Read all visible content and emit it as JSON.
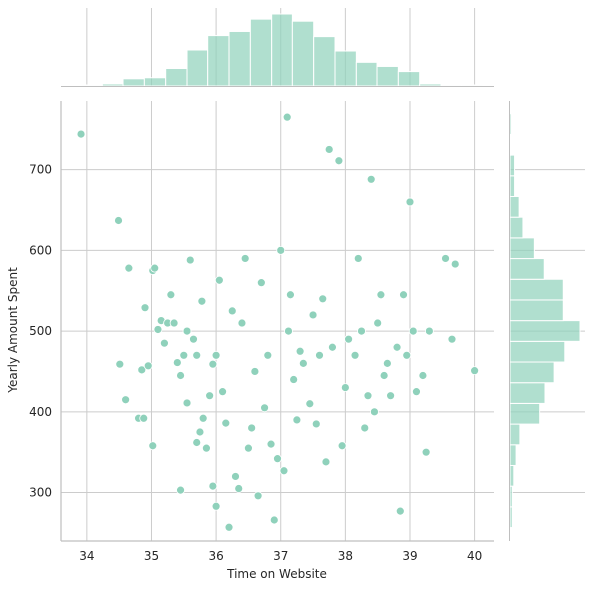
{
  "chart_data": {
    "type": "scatter",
    "title": "",
    "xlabel": "Time on Website",
    "ylabel": "Yearly Amount Spent",
    "xlim": [
      33.6,
      40.3
    ],
    "ylim": [
      240,
      785
    ],
    "xticks": [
      34,
      35,
      36,
      37,
      38,
      39,
      40
    ],
    "yticks": [
      300,
      400,
      500,
      600,
      700
    ],
    "grid": true,
    "color": "#8fd1bb",
    "marginal_x_hist": {
      "bin_edges": [
        33.91,
        34.24,
        34.56,
        34.89,
        35.22,
        35.55,
        35.87,
        36.2,
        36.53,
        36.86,
        37.18,
        37.51,
        37.84,
        38.17,
        38.49,
        38.82,
        39.15,
        39.48,
        39.8,
        40.13
      ],
      "counts": [
        1,
        2,
        7,
        8,
        17,
        35,
        49,
        53,
        65,
        70,
        63,
        48,
        34,
        23,
        19,
        14,
        2,
        1,
        1
      ]
    },
    "marginal_y_hist": {
      "bin_edges": [
        256.67,
        282.3,
        307.93,
        333.55,
        359.18,
        384.81,
        410.44,
        436.07,
        461.69,
        487.32,
        512.95,
        538.58,
        564.21,
        589.83,
        615.46,
        641.09,
        666.72,
        692.35,
        717.97,
        743.6,
        769.23
      ],
      "counts": [
        3,
        3,
        5,
        8,
        13,
        39,
        46,
        58,
        72,
        92,
        70,
        70,
        45,
        32,
        17,
        12,
        6,
        6,
        1,
        2
      ]
    },
    "points": [
      [
        33.91,
        744
      ],
      [
        34.49,
        637
      ],
      [
        34.51,
        459
      ],
      [
        34.6,
        415
      ],
      [
        34.65,
        578
      ],
      [
        34.8,
        392
      ],
      [
        34.85,
        452
      ],
      [
        34.88,
        392
      ],
      [
        34.9,
        529
      ],
      [
        34.95,
        457
      ],
      [
        35.02,
        358
      ],
      [
        35.02,
        575
      ],
      [
        35.05,
        578
      ],
      [
        35.1,
        502
      ],
      [
        35.15,
        513
      ],
      [
        35.2,
        485
      ],
      [
        35.25,
        510
      ],
      [
        35.3,
        545
      ],
      [
        35.35,
        510
      ],
      [
        35.4,
        461
      ],
      [
        35.45,
        303
      ],
      [
        35.45,
        445
      ],
      [
        35.5,
        470
      ],
      [
        35.55,
        411
      ],
      [
        35.55,
        500
      ],
      [
        35.6,
        588
      ],
      [
        35.65,
        490
      ],
      [
        35.7,
        362
      ],
      [
        35.7,
        470
      ],
      [
        35.75,
        375
      ],
      [
        35.78,
        537
      ],
      [
        35.8,
        392
      ],
      [
        35.85,
        355
      ],
      [
        35.9,
        420
      ],
      [
        35.95,
        308
      ],
      [
        35.95,
        459
      ],
      [
        36.0,
        283
      ],
      [
        36.0,
        470
      ],
      [
        36.05,
        563
      ],
      [
        36.1,
        425
      ],
      [
        36.15,
        386
      ],
      [
        36.2,
        257
      ],
      [
        36.25,
        525
      ],
      [
        36.3,
        320
      ],
      [
        36.35,
        305
      ],
      [
        36.4,
        510
      ],
      [
        36.45,
        590
      ],
      [
        36.5,
        355
      ],
      [
        36.55,
        380
      ],
      [
        36.6,
        450
      ],
      [
        36.65,
        296
      ],
      [
        36.7,
        560
      ],
      [
        36.75,
        405
      ],
      [
        36.8,
        470
      ],
      [
        36.85,
        360
      ],
      [
        36.9,
        266
      ],
      [
        36.95,
        342
      ],
      [
        37.0,
        600
      ],
      [
        37.05,
        327
      ],
      [
        37.1,
        765
      ],
      [
        37.12,
        500
      ],
      [
        37.15,
        545
      ],
      [
        37.2,
        440
      ],
      [
        37.25,
        390
      ],
      [
        37.3,
        475
      ],
      [
        37.35,
        460
      ],
      [
        37.45,
        410
      ],
      [
        37.5,
        520
      ],
      [
        37.55,
        385
      ],
      [
        37.6,
        470
      ],
      [
        37.65,
        540
      ],
      [
        37.7,
        338
      ],
      [
        37.75,
        725
      ],
      [
        37.8,
        480
      ],
      [
        37.9,
        711
      ],
      [
        37.95,
        358
      ],
      [
        38.0,
        430
      ],
      [
        38.05,
        490
      ],
      [
        38.15,
        470
      ],
      [
        38.2,
        590
      ],
      [
        38.25,
        500
      ],
      [
        38.3,
        380
      ],
      [
        38.35,
        420
      ],
      [
        38.4,
        688
      ],
      [
        38.45,
        400
      ],
      [
        38.5,
        510
      ],
      [
        38.55,
        545
      ],
      [
        38.6,
        445
      ],
      [
        38.65,
        460
      ],
      [
        38.7,
        420
      ],
      [
        38.8,
        480
      ],
      [
        38.85,
        277
      ],
      [
        38.9,
        545
      ],
      [
        38.95,
        470
      ],
      [
        39.0,
        660
      ],
      [
        39.05,
        500
      ],
      [
        39.1,
        425
      ],
      [
        39.2,
        445
      ],
      [
        39.25,
        350
      ],
      [
        39.3,
        500
      ],
      [
        39.55,
        590
      ],
      [
        39.65,
        490
      ],
      [
        39.7,
        583
      ],
      [
        40.0,
        451
      ]
    ]
  }
}
